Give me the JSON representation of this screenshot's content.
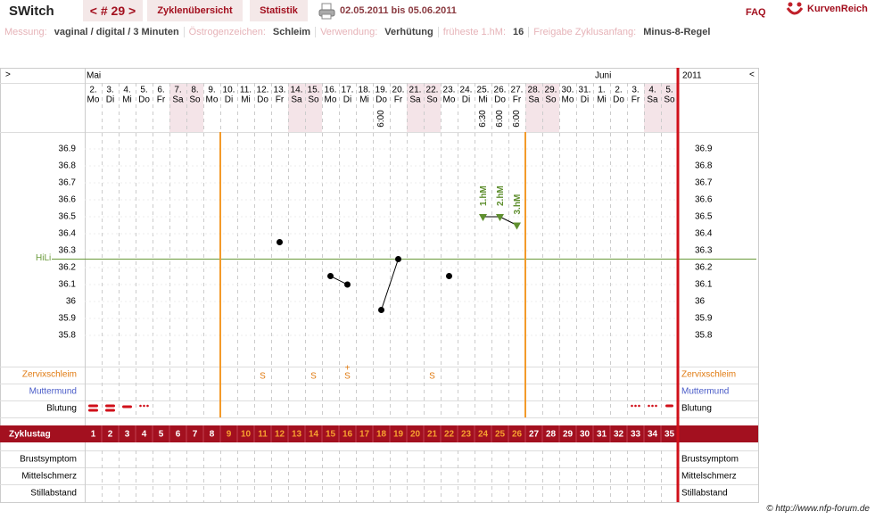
{
  "header": {
    "app": "SWitch",
    "cycle_nav": "< # 29 >",
    "tabs": [
      "Zyklenübersicht",
      "Statistik"
    ],
    "date_range": "02.05.2011 bis 05.06.2011",
    "faq": "FAQ",
    "logo": "KurvenReich"
  },
  "info": [
    {
      "label": "Messung:",
      "value": "vaginal / digital / 3 Minuten"
    },
    {
      "label": "Östrogenzeichen:",
      "value": "Schleim"
    },
    {
      "label": "Verwendung:",
      "value": "Verhütung"
    },
    {
      "label": "früheste 1.hM:",
      "value": "16"
    },
    {
      "label": "Freigabe Zyklusanfang:",
      "value": "Minus-8-Regel"
    }
  ],
  "footer": "© http://www.nfp-forum.de",
  "chart_data": {
    "type": "line",
    "nav_next": ">",
    "nav_prev": "<",
    "year": "2011",
    "months": [
      "Mai",
      "Juni"
    ],
    "categories": [
      "2.",
      "3.",
      "4.",
      "5.",
      "6.",
      "7.",
      "8.",
      "9.",
      "10.",
      "11.",
      "12.",
      "13.",
      "14.",
      "15.",
      "16.",
      "17.",
      "18.",
      "19.",
      "20.",
      "21.",
      "22.",
      "23.",
      "24.",
      "25.",
      "26.",
      "27.",
      "28.",
      "29.",
      "30.",
      "31.",
      "1.",
      "2.",
      "3.",
      "4.",
      "5."
    ],
    "weekdays": [
      "Mo",
      "Di",
      "Mi",
      "Do",
      "Fr",
      "Sa",
      "So",
      "Mo",
      "Di",
      "Mi",
      "Do",
      "Fr",
      "Sa",
      "So",
      "Mo",
      "Di",
      "Mi",
      "Do",
      "Fr",
      "Sa",
      "So",
      "Mo",
      "Di",
      "Mi",
      "Do",
      "Fr",
      "Sa",
      "So",
      "Mo",
      "Di",
      "Mi",
      "Do",
      "Fr",
      "Sa",
      "So"
    ],
    "times": [
      null,
      null,
      null,
      null,
      null,
      null,
      null,
      null,
      null,
      null,
      null,
      null,
      null,
      null,
      null,
      null,
      null,
      "6:00",
      null,
      null,
      null,
      null,
      null,
      "6:30",
      "6:00",
      "6:00",
      null,
      null,
      null,
      null,
      null,
      null,
      null,
      null,
      null
    ],
    "ylim": [
      35.8,
      36.9
    ],
    "yticks": [
      36.9,
      36.8,
      36.7,
      36.6,
      36.5,
      36.4,
      36.3,
      36.2,
      36.1,
      36,
      35.9,
      35.8
    ],
    "grid": true,
    "series": [
      {
        "color": "#000000",
        "marker": "circle",
        "values": [
          null,
          null,
          null,
          null,
          null,
          null,
          null,
          null,
          null,
          null,
          null,
          36.35,
          null,
          null,
          36.15,
          36.1,
          null,
          35.95,
          36.25,
          null,
          null,
          36.15,
          null,
          null,
          null,
          null,
          null,
          null,
          null,
          null,
          null,
          null,
          null,
          null,
          null
        ]
      },
      {
        "color": "#5f8f2f",
        "marker": "triangle",
        "values": [
          null,
          null,
          null,
          null,
          null,
          null,
          null,
          null,
          null,
          null,
          null,
          null,
          null,
          null,
          null,
          null,
          null,
          null,
          null,
          null,
          null,
          null,
          null,
          36.5,
          36.5,
          36.45,
          null,
          null,
          null,
          null,
          null,
          null,
          null,
          null,
          null
        ]
      }
    ],
    "annotations": [
      "1.hM",
      "2.hM",
      "3.hM"
    ],
    "hili": {
      "label": "HiLi",
      "value": 36.25,
      "color": "#6a9a3a"
    },
    "fertile_window": [
      9,
      26
    ],
    "rows": {
      "zervixschleim": "Zervixschleim",
      "muttermund": "Muttermund",
      "blutung": "Blutung",
      "zyklustag": "Zyklustag",
      "brustsymptom": "Brustsymptom",
      "mittelschmerz": "Mittelschmerz",
      "stillabstand": "Stillabstand"
    },
    "zervixschleim": [
      null,
      null,
      null,
      null,
      null,
      null,
      null,
      null,
      null,
      null,
      "S",
      null,
      null,
      "S",
      null,
      "S",
      null,
      null,
      null,
      null,
      "S",
      null,
      null,
      null,
      null,
      null,
      null,
      null,
      null,
      null,
      null,
      null,
      null,
      null,
      null
    ],
    "zervix_plus": [
      null,
      null,
      null,
      null,
      null,
      null,
      null,
      null,
      null,
      null,
      null,
      null,
      null,
      null,
      null,
      "+",
      null,
      null,
      null,
      null,
      null,
      null,
      null,
      null,
      null,
      null,
      null,
      null,
      null,
      null,
      null,
      null,
      null,
      null,
      null
    ],
    "cycle_days": [
      1,
      2,
      3,
      4,
      5,
      6,
      7,
      8,
      9,
      10,
      11,
      12,
      13,
      14,
      15,
      16,
      17,
      18,
      19,
      20,
      21,
      22,
      23,
      24,
      25,
      26,
      27,
      28,
      29,
      30,
      31,
      32,
      33,
      34,
      35
    ]
  }
}
